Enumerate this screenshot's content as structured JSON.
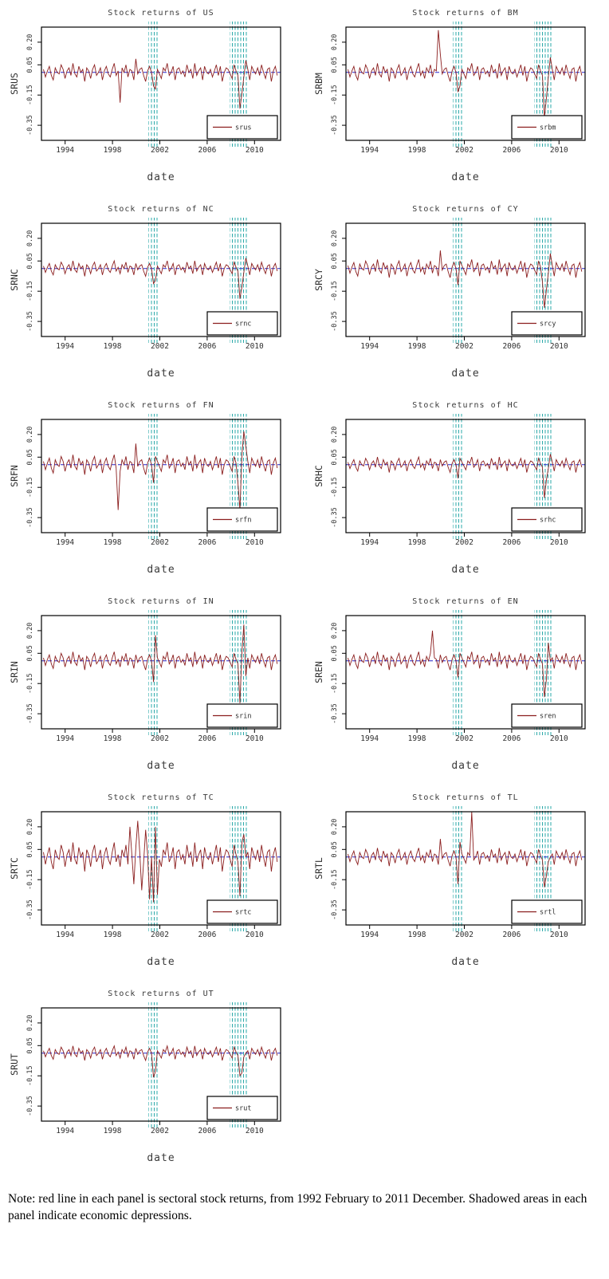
{
  "page": {
    "note": "Note: red line in each panel is sectoral stock returns, from 1992 February to 2011 December. Shadowed areas in each panel indicate economic depressions."
  },
  "chart_data": {
    "type": "line",
    "layout": {
      "grid": "2-column small multiples, 11 panels",
      "xlabel": "date",
      "x_ticks": [
        1994,
        1998,
        2002,
        2006,
        2010
      ],
      "x_range": [
        1992,
        2012.2
      ],
      "y_tick_labels": [
        "0.20",
        "0.05",
        "-0.15",
        "-0.35"
      ],
      "y_tick_values": [
        0.2,
        0.05,
        -0.15,
        -0.35
      ],
      "y_range": [
        -0.45,
        0.3
      ],
      "mean_line_y": 0,
      "recession_bands": [
        [
          2001.05,
          2001.95
        ],
        [
          2007.9,
          2009.5
        ]
      ],
      "legend_position": "bottom-right"
    },
    "colors": {
      "series": "#8b1e1e",
      "mean_line": "#2525cc",
      "band": "#2aa8a8",
      "frame": "#000000"
    },
    "series_definition": {
      "note": "monthly-style noisy series; panel values = base_values_x100 * scale, overridden at event indices, units = value*0.01",
      "x_start": 1992.17,
      "x_end": 2011.92,
      "n_points": 120,
      "base_values_x100": [
        2,
        -3,
        1,
        4,
        -2,
        -5,
        3,
        0,
        -1,
        5,
        2,
        -4,
        1,
        3,
        -2,
        6,
        -1,
        -3,
        4,
        0,
        2,
        -6,
        3,
        1,
        -4,
        2,
        5,
        -2,
        0,
        3,
        -5,
        1,
        4,
        -1,
        -3,
        2,
        6,
        -2,
        1,
        -4,
        3,
        0,
        5,
        -3,
        2,
        1,
        -5,
        4,
        -1,
        2,
        3,
        -2,
        -6,
        1,
        4,
        0,
        -3,
        5,
        2,
        -1,
        -4,
        3,
        1,
        6,
        -2,
        0,
        4,
        -5,
        2,
        3,
        -1,
        1,
        -3,
        5,
        0,
        2,
        -4,
        6,
        -2,
        1,
        3,
        -5,
        4,
        0,
        -1,
        2,
        -3,
        1,
        5,
        -2,
        4,
        -6,
        0,
        3,
        2,
        -1,
        -4,
        5,
        1,
        -2,
        3,
        6,
        -3,
        0,
        2,
        -5,
        4,
        1,
        -1,
        3,
        -2,
        5,
        0,
        -4,
        2,
        3,
        -6,
        1,
        4,
        -2
      ]
    },
    "panels": [
      {
        "id": "us",
        "title": "Stock returns of US",
        "ylabel": "SRUS",
        "legend": "srus",
        "scale": 1.0,
        "events": {
          "39": -20,
          "47": 9,
          "56": -9,
          "57": -11,
          "100": -24,
          "101": -14,
          "103": 8
        }
      },
      {
        "id": "bm",
        "title": "Stock returns of BM",
        "ylabel": "SRBM",
        "legend": "srbm",
        "scale": 1.0,
        "events": {
          "46": 28,
          "47": 12,
          "56": -13,
          "57": -9,
          "100": -30,
          "101": -17,
          "103": 10
        }
      },
      {
        "id": "nc",
        "title": "Stock returns of NC",
        "ylabel": "SRNC",
        "legend": "srnc",
        "scale": 0.85,
        "events": {
          "56": -10,
          "57": -8,
          "100": -20,
          "101": -12,
          "103": 7
        }
      },
      {
        "id": "cy",
        "title": "Stock returns of CY",
        "ylabel": "SRCY",
        "legend": "srcy",
        "scale": 1.0,
        "events": {
          "47": 12,
          "56": -11,
          "99": -9,
          "100": -26,
          "101": -14,
          "103": 10
        }
      },
      {
        "id": "fn",
        "title": "Stock returns of FN",
        "ylabel": "SRFN",
        "legend": "srfn",
        "scale": 1.1,
        "events": {
          "38": -30,
          "47": 14,
          "56": -12,
          "99": -12,
          "100": -30,
          "102": 22,
          "103": 12
        }
      },
      {
        "id": "hc",
        "title": "Stock returns of HC",
        "ylabel": "SRHC",
        "legend": "srhc",
        "scale": 0.85,
        "events": {
          "56": -9,
          "100": -22,
          "101": -10,
          "103": 7
        }
      },
      {
        "id": "in",
        "title": "Stock returns of IN",
        "ylabel": "SRIN",
        "legend": "srin",
        "scale": 1.0,
        "events": {
          "56": -14,
          "57": 17,
          "100": -28,
          "102": 24,
          "103": -10
        }
      },
      {
        "id": "en",
        "title": "Stock returns of EN",
        "ylabel": "SREN",
        "legend": "sren",
        "scale": 1.0,
        "events": {
          "43": 20,
          "56": -11,
          "100": -24,
          "101": -12,
          "102": 12
        }
      },
      {
        "id": "tc",
        "title": "Stock returns of TC",
        "ylabel": "SRTC",
        "legend": "srtc",
        "scale": 1.6,
        "events": {
          "44": 20,
          "46": -18,
          "48": 24,
          "50": -22,
          "52": 18,
          "54": -28,
          "56": -30,
          "57": 20,
          "58": -25,
          "100": -26,
          "102": 15
        }
      },
      {
        "id": "tl",
        "title": "Stock returns of TL",
        "ylabel": "SRTL",
        "legend": "srtl",
        "scale": 1.0,
        "events": {
          "47": 12,
          "56": -18,
          "57": 10,
          "63": 32,
          "100": -20,
          "101": -12
        }
      },
      {
        "id": "ut",
        "title": "Stock returns of UT",
        "ylabel": "SRUT",
        "legend": "srut",
        "scale": 0.8,
        "events": {
          "56": -16,
          "57": -12,
          "100": -15,
          "101": -13
        }
      }
    ]
  }
}
